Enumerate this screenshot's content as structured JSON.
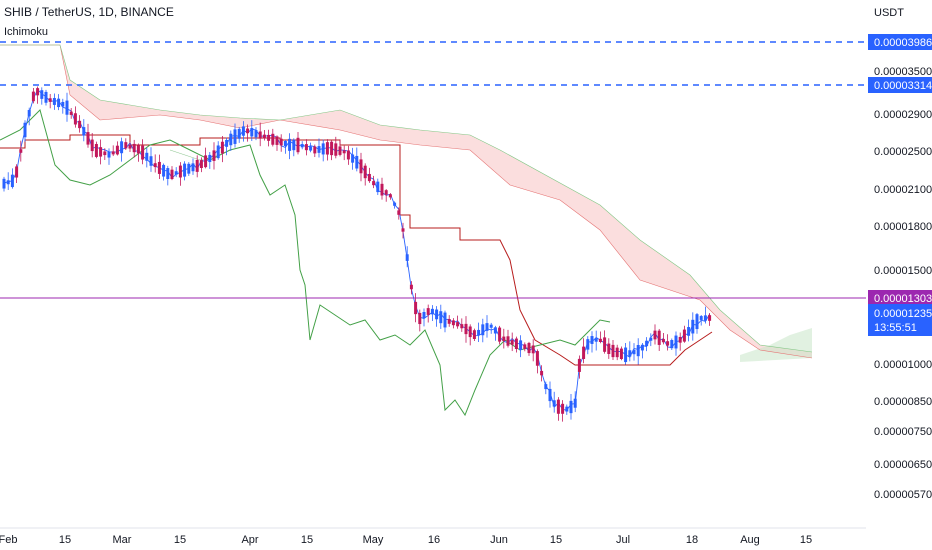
{
  "header": {
    "symbol": "SHIB / TetherUS, 1D, BINANCE",
    "indicator": "Ichimoku"
  },
  "price_axis": {
    "unit": "USDT",
    "ticks": [
      "0.00003500",
      "0.00002900",
      "0.00002500",
      "0.00002100",
      "0.00001800",
      "0.00001500",
      "0.00001000",
      "0.00000850",
      "0.00000750",
      "0.00000650",
      "0.00000570"
    ]
  },
  "time_axis": {
    "ticks": [
      "Feb",
      "15",
      "Mar",
      "15",
      "Apr",
      "15",
      "May",
      "16",
      "Jun",
      "15",
      "Jul",
      "18",
      "Aug",
      "15"
    ]
  },
  "levels": [
    {
      "label": "0.00003986",
      "color": "#2962ff",
      "style": "dashed"
    },
    {
      "label": "0.00003314",
      "color": "#2962ff",
      "style": "dashed"
    },
    {
      "label": "0.00001303",
      "color": "#9c27b0",
      "style": "solid"
    }
  ],
  "last_price": {
    "label": "0.00001235",
    "countdown": "13:55:51",
    "color": "#2962ff"
  },
  "colors": {
    "up": "#2962ff",
    "down": "#c2185b",
    "tenkan": "#2962ff",
    "kijun": "#b71c1c",
    "lagging": "#43a047",
    "cloud_bear": "#f8c8c8",
    "cloud_bull": "#c8e6c9"
  },
  "chart_data": {
    "type": "candlestick",
    "series": [
      {
        "name": "SHIB/USDT"
      }
    ]
  }
}
